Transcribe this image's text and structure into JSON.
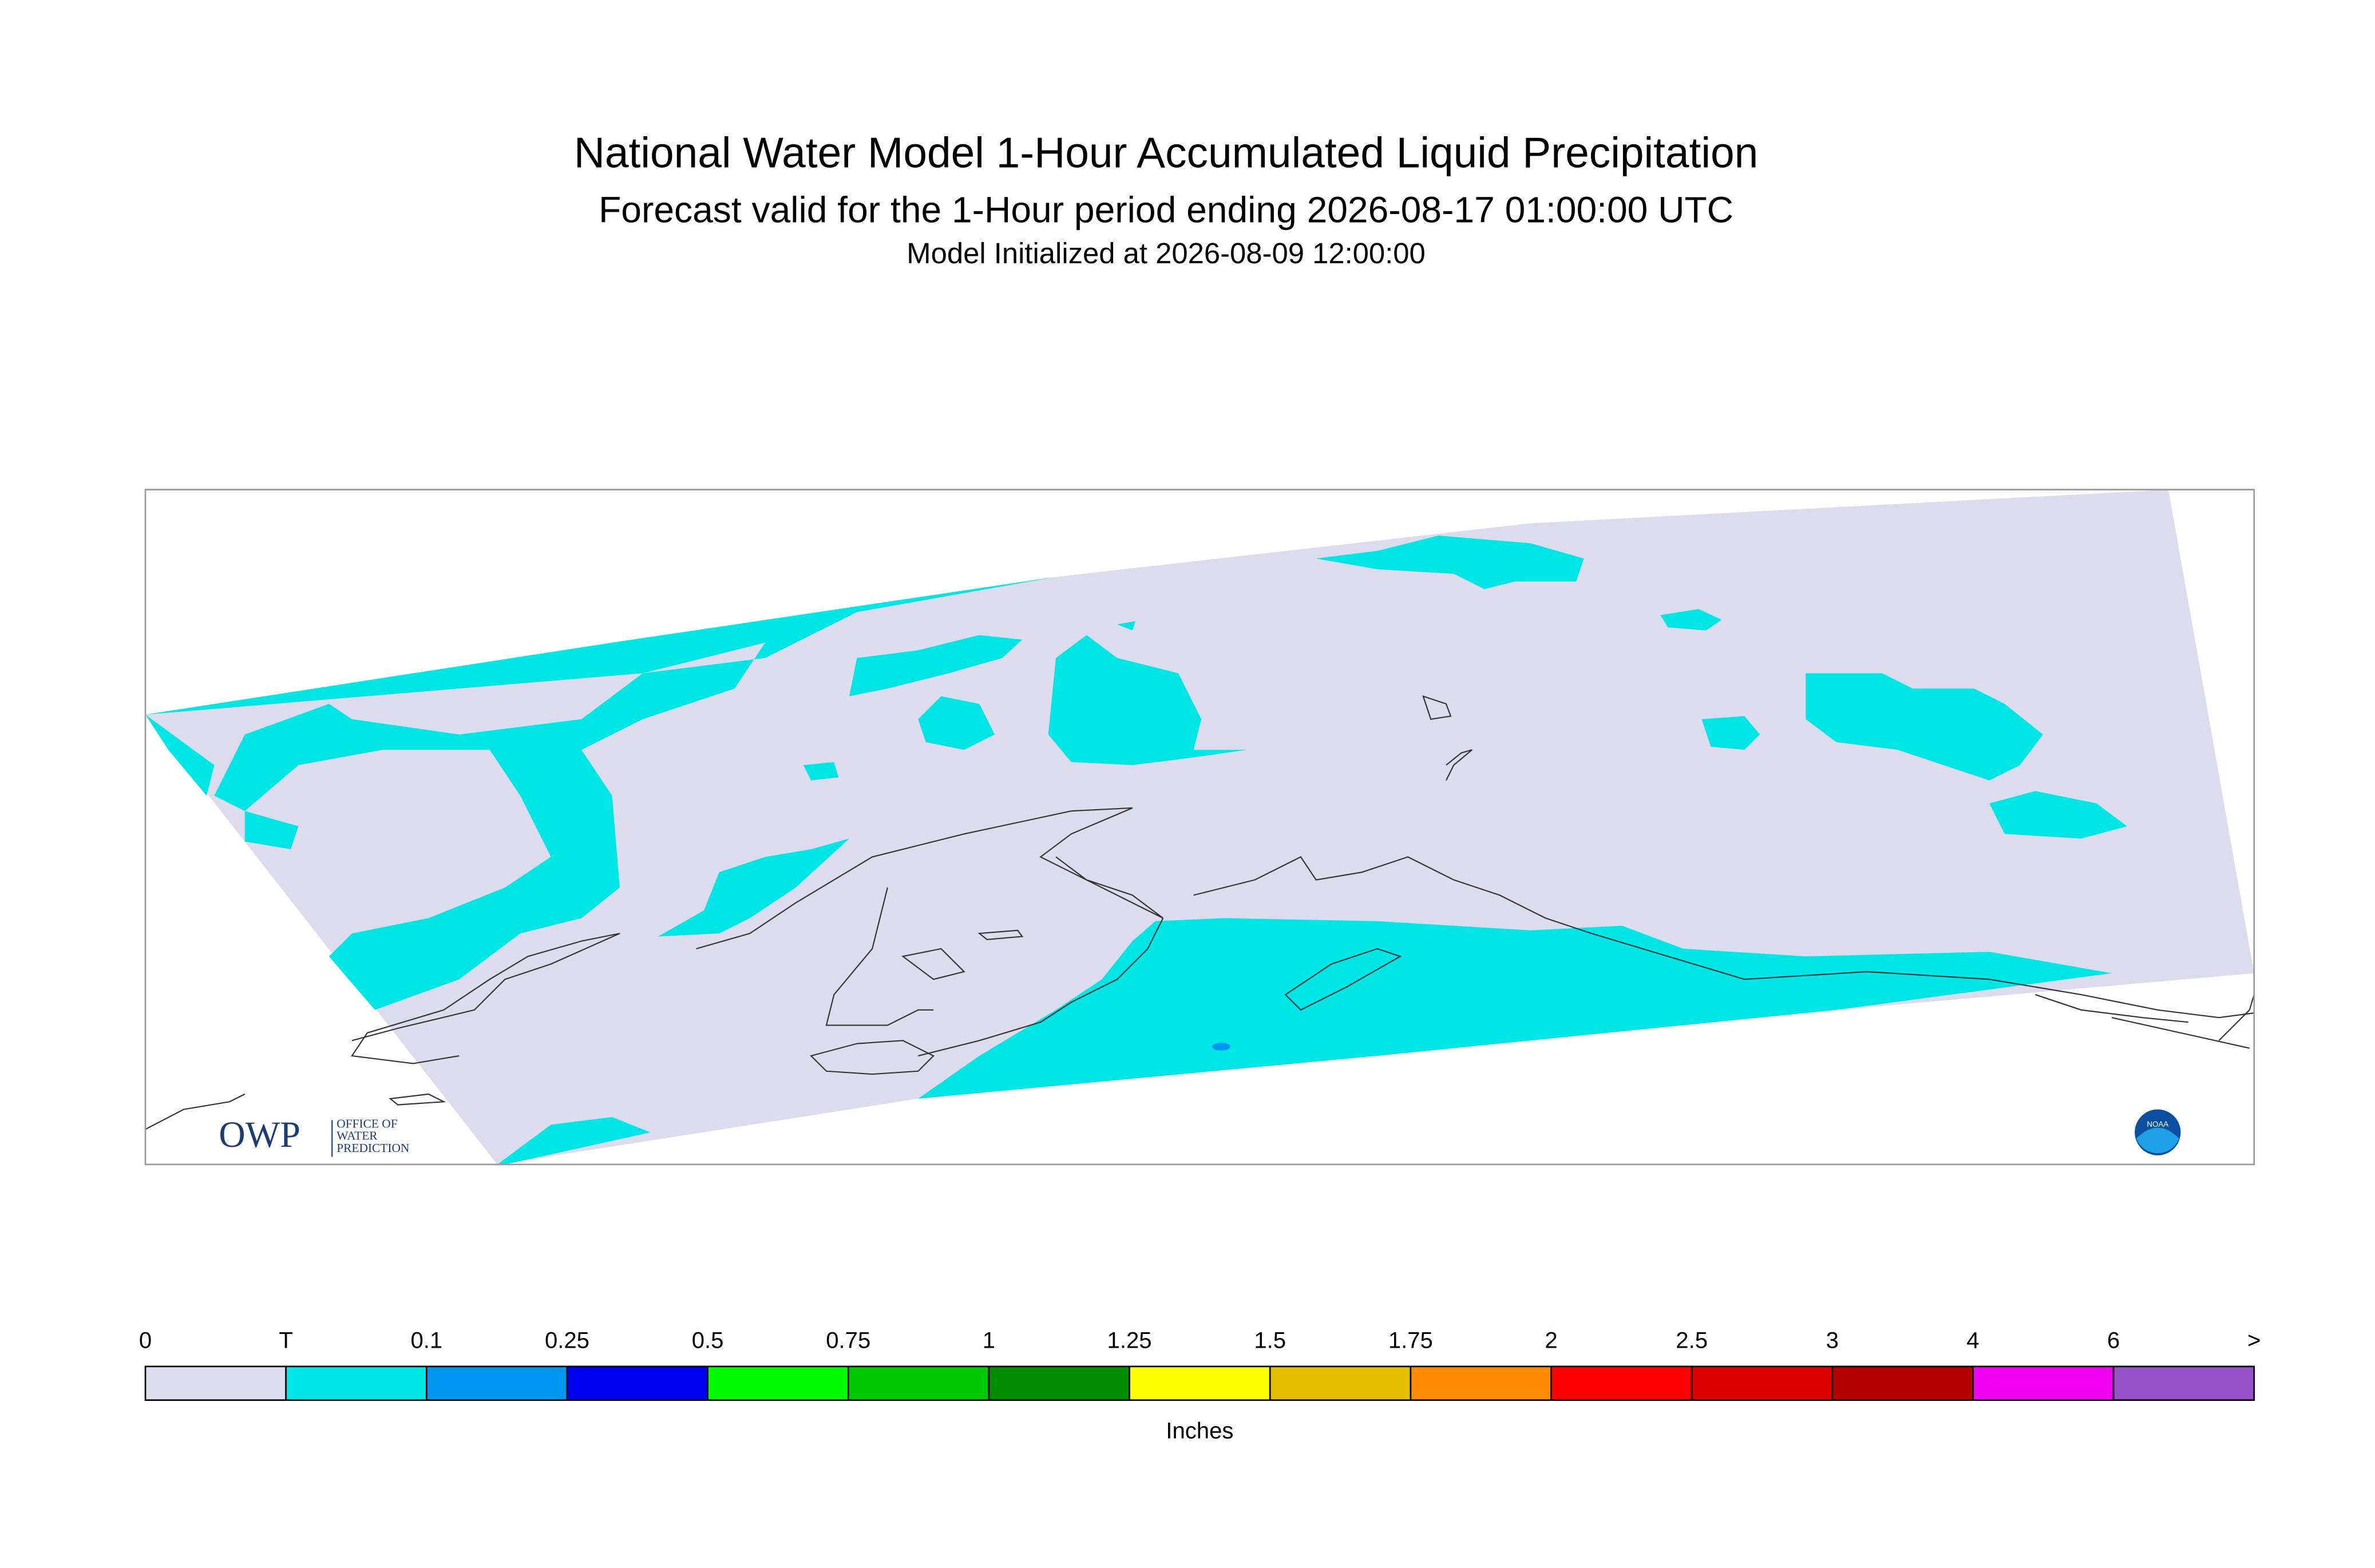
{
  "header": {
    "title": "National Water Model 1-Hour Accumulated Liquid Precipitation",
    "subtitle": "Forecast valid for the 1-Hour period ending 2026-08-17 01:00:00 UTC",
    "init": "Model Initialized at 2026-08-09 12:00:00"
  },
  "logos": {
    "owp": "OWP",
    "owp_line1": "OFFICE OF",
    "owp_line2": "WATER",
    "owp_line3": "PREDICTION",
    "noaa": "NOAA"
  },
  "colorbar": {
    "labels": [
      "0",
      "T",
      "0.1",
      "0.25",
      "0.5",
      "0.75",
      "1",
      "1.25",
      "1.5",
      "1.75",
      "2",
      "2.5",
      "3",
      "4",
      "6",
      ">"
    ],
    "colors": [
      "#dcdcee",
      "#00e6e6",
      "#0096f0",
      "#0000f0",
      "#00fa00",
      "#00c800",
      "#008c00",
      "#ffff00",
      "#e6be00",
      "#ff8c00",
      "#ff0000",
      "#dc0000",
      "#b40000",
      "#f000f0",
      "#9650c8"
    ],
    "units": "Inches"
  }
}
